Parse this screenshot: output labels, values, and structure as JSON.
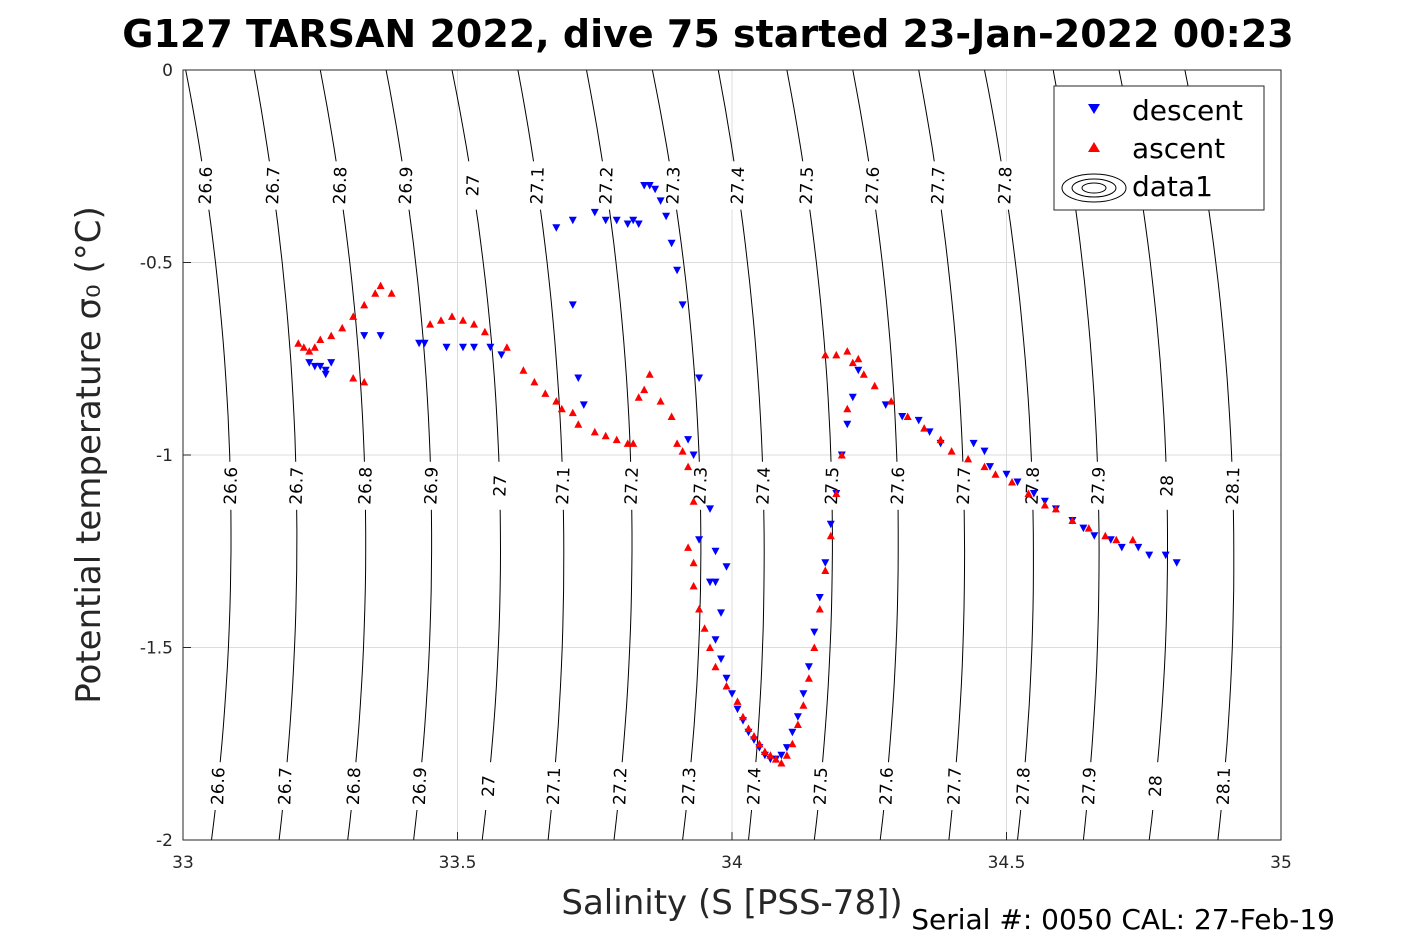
{
  "title": "G127 TARSAN 2022, dive 75 started 23-Jan-2022 00:23",
  "footer": "Serial #: 0050  CAL: 27-Feb-19",
  "colors": {
    "descent": "#0000ff",
    "ascent": "#ff0000",
    "grid": "#dcdcdc",
    "isopycnal": "#000000"
  },
  "chart_data": {
    "type": "scatter",
    "xlabel": "Salinity (S [PSS-78])",
    "ylabel": "Potential temperature σ₀ (°C)",
    "xlim": [
      33,
      35
    ],
    "ylim": [
      -2,
      0
    ],
    "x_ticks": [
      "33",
      "33.5",
      "34",
      "34.5",
      "35"
    ],
    "y_ticks": [
      "0",
      "-0.5",
      "-1",
      "-1.5",
      "-2"
    ],
    "grid": true,
    "legend": {
      "position": "top-right",
      "entries": [
        "descent",
        "ascent",
        "data1"
      ]
    },
    "isopycnal_labels": [
      "26.6",
      "26.7",
      "26.8",
      "26.9",
      "27",
      "27.1",
      "27.2",
      "27.3",
      "27.4",
      "27.5",
      "27.6",
      "27.7",
      "27.8",
      "27.9",
      "28",
      "28.1"
    ],
    "series": [
      {
        "name": "descent",
        "marker": "triangle-down",
        "points": [
          [
            33.23,
            -0.76
          ],
          [
            33.24,
            -0.77
          ],
          [
            33.25,
            -0.77
          ],
          [
            33.26,
            -0.78
          ],
          [
            33.27,
            -0.76
          ],
          [
            33.26,
            -0.79
          ],
          [
            33.33,
            -0.69
          ],
          [
            33.36,
            -0.69
          ],
          [
            33.43,
            -0.71
          ],
          [
            33.44,
            -0.71
          ],
          [
            33.48,
            -0.72
          ],
          [
            33.51,
            -0.72
          ],
          [
            33.53,
            -0.72
          ],
          [
            33.56,
            -0.72
          ],
          [
            33.58,
            -0.74
          ],
          [
            33.68,
            -0.41
          ],
          [
            33.71,
            -0.39
          ],
          [
            33.75,
            -0.37
          ],
          [
            33.77,
            -0.39
          ],
          [
            33.79,
            -0.39
          ],
          [
            33.81,
            -0.4
          ],
          [
            33.82,
            -0.39
          ],
          [
            33.83,
            -0.4
          ],
          [
            33.84,
            -0.3
          ],
          [
            33.85,
            -0.3
          ],
          [
            33.86,
            -0.31
          ],
          [
            33.87,
            -0.34
          ],
          [
            33.88,
            -0.38
          ],
          [
            33.89,
            -0.45
          ],
          [
            33.9,
            -0.52
          ],
          [
            33.91,
            -0.61
          ],
          [
            33.71,
            -0.61
          ],
          [
            33.72,
            -0.8
          ],
          [
            33.73,
            -0.87
          ],
          [
            33.94,
            -0.8
          ],
          [
            33.92,
            -0.96
          ],
          [
            33.93,
            -1.0
          ],
          [
            33.96,
            -1.14
          ],
          [
            33.94,
            -1.22
          ],
          [
            33.97,
            -1.25
          ],
          [
            33.99,
            -1.29
          ],
          [
            33.96,
            -1.33
          ],
          [
            33.97,
            -1.33
          ],
          [
            33.98,
            -1.41
          ],
          [
            33.97,
            -1.48
          ],
          [
            33.98,
            -1.53
          ],
          [
            33.99,
            -1.58
          ],
          [
            34.0,
            -1.62
          ],
          [
            34.01,
            -1.66
          ],
          [
            34.02,
            -1.69
          ],
          [
            34.03,
            -1.72
          ],
          [
            34.04,
            -1.74
          ],
          [
            34.05,
            -1.76
          ],
          [
            34.06,
            -1.78
          ],
          [
            34.07,
            -1.79
          ],
          [
            34.08,
            -1.79
          ],
          [
            34.09,
            -1.78
          ],
          [
            34.1,
            -1.76
          ],
          [
            34.11,
            -1.72
          ],
          [
            34.12,
            -1.68
          ],
          [
            34.13,
            -1.62
          ],
          [
            34.14,
            -1.55
          ],
          [
            34.15,
            -1.46
          ],
          [
            34.16,
            -1.37
          ],
          [
            34.17,
            -1.28
          ],
          [
            34.18,
            -1.18
          ],
          [
            34.19,
            -1.1
          ],
          [
            34.2,
            -1.0
          ],
          [
            34.21,
            -0.92
          ],
          [
            34.22,
            -0.85
          ],
          [
            34.23,
            -0.78
          ],
          [
            34.28,
            -0.87
          ],
          [
            34.31,
            -0.9
          ],
          [
            34.34,
            -0.91
          ],
          [
            34.36,
            -0.94
          ],
          [
            34.38,
            -0.97
          ],
          [
            34.44,
            -0.97
          ],
          [
            34.46,
            -0.99
          ],
          [
            34.47,
            -1.03
          ],
          [
            34.5,
            -1.05
          ],
          [
            34.52,
            -1.07
          ],
          [
            34.55,
            -1.1
          ],
          [
            34.57,
            -1.12
          ],
          [
            34.59,
            -1.14
          ],
          [
            34.62,
            -1.17
          ],
          [
            34.64,
            -1.19
          ],
          [
            34.66,
            -1.21
          ],
          [
            34.69,
            -1.22
          ],
          [
            34.71,
            -1.24
          ],
          [
            34.74,
            -1.24
          ],
          [
            34.76,
            -1.26
          ],
          [
            34.79,
            -1.26
          ],
          [
            34.81,
            -1.28
          ]
        ]
      },
      {
        "name": "ascent",
        "marker": "triangle-up",
        "points": [
          [
            33.21,
            -0.71
          ],
          [
            33.22,
            -0.72
          ],
          [
            33.23,
            -0.73
          ],
          [
            33.24,
            -0.72
          ],
          [
            33.25,
            -0.7
          ],
          [
            33.27,
            -0.69
          ],
          [
            33.29,
            -0.67
          ],
          [
            33.31,
            -0.64
          ],
          [
            33.33,
            -0.61
          ],
          [
            33.35,
            -0.58
          ],
          [
            33.36,
            -0.56
          ],
          [
            33.38,
            -0.58
          ],
          [
            33.31,
            -0.8
          ],
          [
            33.33,
            -0.81
          ],
          [
            33.45,
            -0.66
          ],
          [
            33.47,
            -0.65
          ],
          [
            33.49,
            -0.64
          ],
          [
            33.51,
            -0.65
          ],
          [
            33.53,
            -0.66
          ],
          [
            33.55,
            -0.68
          ],
          [
            33.59,
            -0.72
          ],
          [
            33.62,
            -0.78
          ],
          [
            33.64,
            -0.81
          ],
          [
            33.66,
            -0.84
          ],
          [
            33.68,
            -0.86
          ],
          [
            33.69,
            -0.88
          ],
          [
            33.71,
            -0.89
          ],
          [
            33.72,
            -0.92
          ],
          [
            33.75,
            -0.94
          ],
          [
            33.77,
            -0.95
          ],
          [
            33.79,
            -0.96
          ],
          [
            33.81,
            -0.97
          ],
          [
            33.82,
            -0.97
          ],
          [
            33.83,
            -0.85
          ],
          [
            33.84,
            -0.83
          ],
          [
            33.85,
            -0.79
          ],
          [
            33.87,
            -0.86
          ],
          [
            33.89,
            -0.9
          ],
          [
            33.9,
            -0.97
          ],
          [
            33.91,
            -0.99
          ],
          [
            33.92,
            -1.03
          ],
          [
            33.93,
            -1.12
          ],
          [
            33.92,
            -1.24
          ],
          [
            33.93,
            -1.28
          ],
          [
            33.93,
            -1.34
          ],
          [
            33.94,
            -1.4
          ],
          [
            33.95,
            -1.45
          ],
          [
            33.96,
            -1.5
          ],
          [
            33.97,
            -1.55
          ],
          [
            33.99,
            -1.6
          ],
          [
            34.01,
            -1.64
          ],
          [
            34.02,
            -1.68
          ],
          [
            34.03,
            -1.71
          ],
          [
            34.04,
            -1.73
          ],
          [
            34.05,
            -1.75
          ],
          [
            34.06,
            -1.77
          ],
          [
            34.07,
            -1.78
          ],
          [
            34.08,
            -1.79
          ],
          [
            34.09,
            -1.8
          ],
          [
            34.1,
            -1.78
          ],
          [
            34.11,
            -1.75
          ],
          [
            34.12,
            -1.7
          ],
          [
            34.13,
            -1.65
          ],
          [
            34.14,
            -1.58
          ],
          [
            34.15,
            -1.5
          ],
          [
            34.16,
            -1.4
          ],
          [
            34.17,
            -1.3
          ],
          [
            34.18,
            -1.21
          ],
          [
            34.19,
            -1.1
          ],
          [
            34.2,
            -1.0
          ],
          [
            34.21,
            -0.88
          ],
          [
            34.22,
            -0.76
          ],
          [
            34.21,
            -0.73
          ],
          [
            34.23,
            -0.75
          ],
          [
            34.17,
            -0.74
          ],
          [
            34.19,
            -0.74
          ],
          [
            34.24,
            -0.79
          ],
          [
            34.26,
            -0.82
          ],
          [
            34.29,
            -0.86
          ],
          [
            34.32,
            -0.9
          ],
          [
            34.35,
            -0.93
          ],
          [
            34.38,
            -0.96
          ],
          [
            34.4,
            -0.99
          ],
          [
            34.43,
            -1.01
          ],
          [
            34.46,
            -1.03
          ],
          [
            34.48,
            -1.05
          ],
          [
            34.51,
            -1.07
          ],
          [
            34.54,
            -1.1
          ],
          [
            34.57,
            -1.13
          ],
          [
            34.59,
            -1.14
          ],
          [
            34.62,
            -1.17
          ],
          [
            34.65,
            -1.19
          ],
          [
            34.68,
            -1.21
          ],
          [
            34.7,
            -1.22
          ],
          [
            34.73,
            -1.22
          ]
        ]
      }
    ]
  }
}
